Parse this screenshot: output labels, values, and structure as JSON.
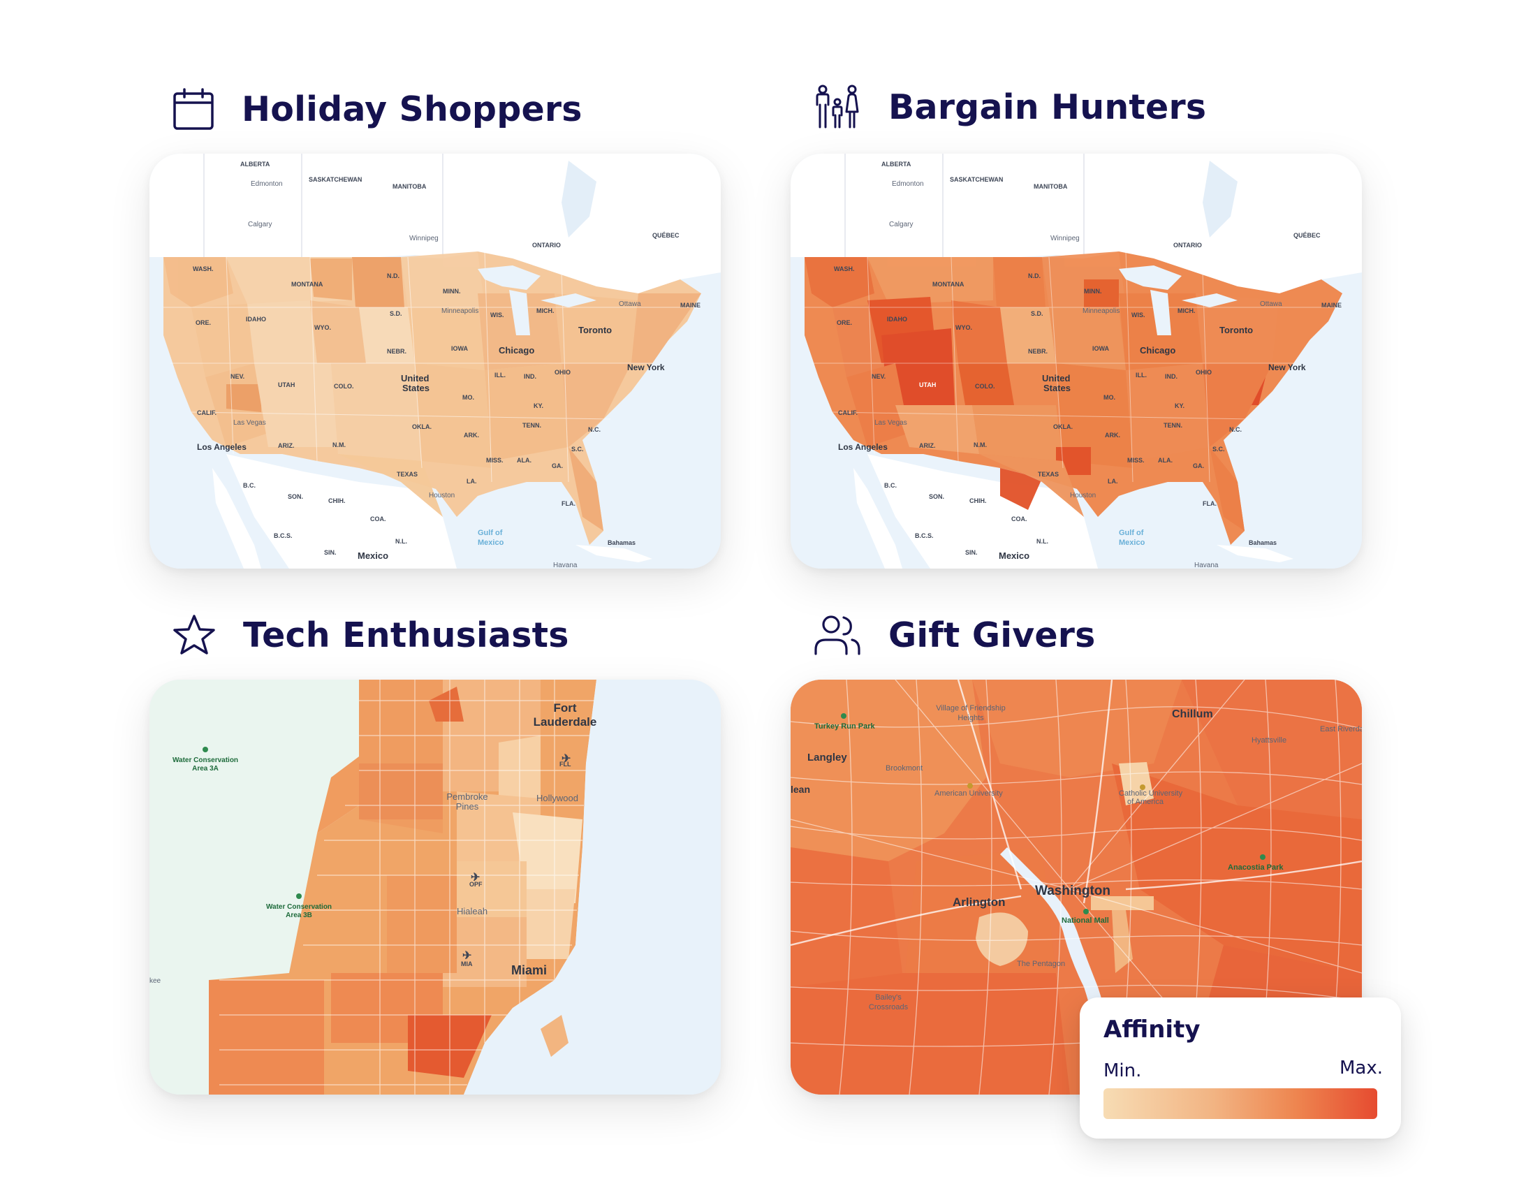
{
  "panels": [
    {
      "title": "Holiday Shoppers",
      "icon": "calendar-icon",
      "labels": {
        "alberta": "ALBERTA",
        "edmonton": "Edmonton",
        "saskatchewan": "SASKATCHEWAN",
        "manitoba": "MANITOBA",
        "calgary": "Calgary",
        "winnipeg": "Winnipeg",
        "ontario": "ONTARIO",
        "quebec": "QUÉBEC",
        "wash": "WASH.",
        "montana": "MONTANA",
        "nd": "N.D.",
        "minn": "MINN.",
        "ottawa": "Ottawa",
        "maine": "MAINE",
        "ore": "ORE.",
        "idaho": "IDAHO",
        "wyo": "WYO.",
        "sd": "S.D.",
        "minneapolis": "Minneapolis",
        "wis": "WIS.",
        "mich": "MICH.",
        "toronto": "Toronto",
        "nebr": "NEBR.",
        "iowa": "IOWA",
        "chicago": "Chicago",
        "nev": "NEV.",
        "utah": "UTAH",
        "colo": "COLO.",
        "us1": "United",
        "us2": "States",
        "ill": "ILL.",
        "ind": "IND.",
        "ohio": "OHIO",
        "newyork": "New York",
        "calif": "CALIF.",
        "lasvegas": "Las Vegas",
        "mo": "MO.",
        "ky": "KY.",
        "okla": "OKLA.",
        "ark": "ARK.",
        "tenn": "TENN.",
        "nc": "N.C.",
        "losangeles": "Los Angeles",
        "ariz": "ARIZ.",
        "nm": "N.M.",
        "miss": "MISS.",
        "ala": "ALA.",
        "ga": "GA.",
        "sc": "S.C.",
        "texas": "TEXAS",
        "la": "LA.",
        "bc": "B.C.",
        "son": "SON.",
        "chih": "CHIH.",
        "houston": "Houston",
        "fla": "FLA.",
        "coa": "COA.",
        "bcs": "B.C.S.",
        "nl": "N.L.",
        "gulf1": "Gulf of",
        "gulf2": "Mexico",
        "bahamas": "Bahamas",
        "sin": "SIN.",
        "mexico": "Mexico",
        "havana": "Havana"
      }
    },
    {
      "title": "Bargain Hunters",
      "icon": "family-icon",
      "labels": {
        "alberta": "ALBERTA",
        "edmonton": "Edmonton",
        "saskatchewan": "SASKATCHEWAN",
        "manitoba": "MANITOBA",
        "calgary": "Calgary",
        "winnipeg": "Winnipeg",
        "ontario": "ONTARIO",
        "quebec": "QUÉBEC",
        "wash": "WASH.",
        "montana": "MONTANA",
        "nd": "N.D.",
        "minn": "MINN.",
        "ottawa": "Ottawa",
        "maine": "MAINE",
        "ore": "ORE.",
        "idaho": "IDAHO",
        "wyo": "WYO.",
        "sd": "S.D.",
        "minneapolis": "Minneapolis",
        "wis": "WIS.",
        "mich": "MICH.",
        "toronto": "Toronto",
        "nebr": "NEBR.",
        "iowa": "IOWA",
        "chicago": "Chicago",
        "nev": "NEV.",
        "utah": "UTAH",
        "colo": "COLO.",
        "us1": "United",
        "us2": "States",
        "ill": "ILL.",
        "ind": "IND.",
        "ohio": "OHIO",
        "newyork": "New York",
        "calif": "CALIF.",
        "lasvegas": "Las Vegas",
        "mo": "MO.",
        "ky": "KY.",
        "okla": "OKLA.",
        "ark": "ARK.",
        "tenn": "TENN.",
        "nc": "N.C.",
        "losangeles": "Los Angeles",
        "ariz": "ARIZ.",
        "nm": "N.M.",
        "miss": "MISS.",
        "ala": "ALA.",
        "ga": "GA.",
        "sc": "S.C.",
        "texas": "TEXAS",
        "la": "LA.",
        "bc": "B.C.",
        "son": "SON.",
        "chih": "CHIH.",
        "houston": "Houston",
        "fla": "FLA.",
        "coa": "COA.",
        "bcs": "B.C.S.",
        "nl": "N.L.",
        "gulf1": "Gulf of",
        "gulf2": "Mexico",
        "bahamas": "Bahamas",
        "sin": "SIN.",
        "mexico": "Mexico",
        "havana": "Havana"
      }
    },
    {
      "title": "Tech Enthusiasts",
      "icon": "star-icon",
      "labels": {
        "fortlauderdale1": "Fort",
        "fortlauderdale2": "Lauderdale",
        "fll": "FLL",
        "wca3a1": "Water Conservation",
        "wca3a2": "Area 3A",
        "pembroke1": "Pembroke",
        "pembroke2": "Pines",
        "hollywood": "Hollywood",
        "opf": "OPF",
        "hialeah": "Hialeah",
        "wca3b1": "Water Conservation",
        "wca3b2": "Area 3B",
        "mia": "MIA",
        "miami": "Miami",
        "kee": "kee"
      }
    },
    {
      "title": "Gift Givers",
      "icon": "users-icon",
      "labels": {
        "turkeyrun": "Turkey Run Park",
        "friendship1": "Village of Friendship",
        "friendship2": "Heights",
        "chillum": "Chillum",
        "eastriverdale": "East Riverda",
        "hyattsville": "Hyattsville",
        "langley": "Langley",
        "brookmont": "Brookmont",
        "american": "American University",
        "catholic1": "Catholic University",
        "catholic2": "of America",
        "lean": "lean",
        "anacostia": "Anacostia Park",
        "arlington": "Arlington",
        "washington": "Washington",
        "nationalmall": "National Mall",
        "pentagon": "The Pentagon",
        "baileys1": "Bailey's",
        "baileys2": "Crossroads"
      }
    }
  ],
  "legend": {
    "title": "Affinity",
    "min_label": "Min.",
    "max_label": "Max.",
    "colors": [
      "#f7dcb4",
      "#f2b483",
      "#ee8650",
      "#e64b30"
    ]
  }
}
